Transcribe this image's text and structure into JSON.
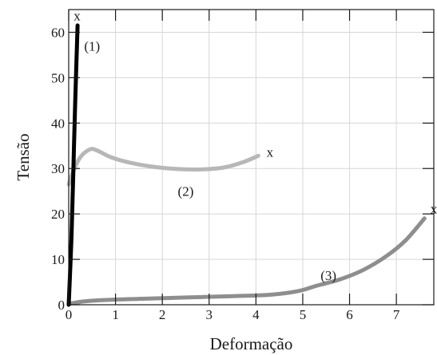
{
  "chart_data": {
    "type": "line",
    "title": "",
    "xlabel": "Deformação",
    "ylabel": "Tensão",
    "xlim": [
      0,
      7.8
    ],
    "ylim": [
      0,
      65
    ],
    "grid": true,
    "x_ticks": [
      "0",
      "1",
      "2",
      "3",
      "4",
      "5",
      "6",
      "7"
    ],
    "y_ticks": [
      "0",
      "10",
      "20",
      "30",
      "40",
      "50",
      "60"
    ],
    "series": [
      {
        "name": "(1)",
        "color": "#000000",
        "points": [
          [
            0.0,
            0.0
          ],
          [
            0.06,
            15
          ],
          [
            0.1,
            30
          ],
          [
            0.14,
            45
          ],
          [
            0.19,
            61.5
          ]
        ],
        "label_at": [
          0.5,
          57
        ],
        "break_marker": "x",
        "break_at": [
          0.18,
          63.5
        ]
      },
      {
        "name": "(2)",
        "color": "#b7b7b7",
        "points": [
          [
            0.0,
            26.5
          ],
          [
            0.1,
            29.5
          ],
          [
            0.25,
            32.5
          ],
          [
            0.45,
            34.2
          ],
          [
            0.6,
            34.0
          ],
          [
            0.9,
            32.5
          ],
          [
            1.3,
            31.3
          ],
          [
            1.8,
            30.4
          ],
          [
            2.3,
            29.9
          ],
          [
            2.8,
            29.8
          ],
          [
            3.3,
            30.2
          ],
          [
            3.7,
            31.3
          ],
          [
            4.05,
            32.8
          ]
        ],
        "label_at": [
          2.5,
          25
        ],
        "break_marker": "x",
        "break_at": [
          4.3,
          33.5
        ]
      },
      {
        "name": "(3)",
        "color": "#8e8e8e",
        "points": [
          [
            0.0,
            0.2
          ],
          [
            0.3,
            0.7
          ],
          [
            0.7,
            1.0
          ],
          [
            1.5,
            1.3
          ],
          [
            2.5,
            1.6
          ],
          [
            3.5,
            1.9
          ],
          [
            4.3,
            2.2
          ],
          [
            4.9,
            3.0
          ],
          [
            5.3,
            4.2
          ],
          [
            5.8,
            5.6
          ],
          [
            6.3,
            7.7
          ],
          [
            6.8,
            10.8
          ],
          [
            7.2,
            14.2
          ],
          [
            7.6,
            19.0
          ]
        ],
        "label_at": [
          5.55,
          6.5
        ],
        "break_marker": "x",
        "break_at": [
          7.8,
          21
        ]
      }
    ]
  }
}
